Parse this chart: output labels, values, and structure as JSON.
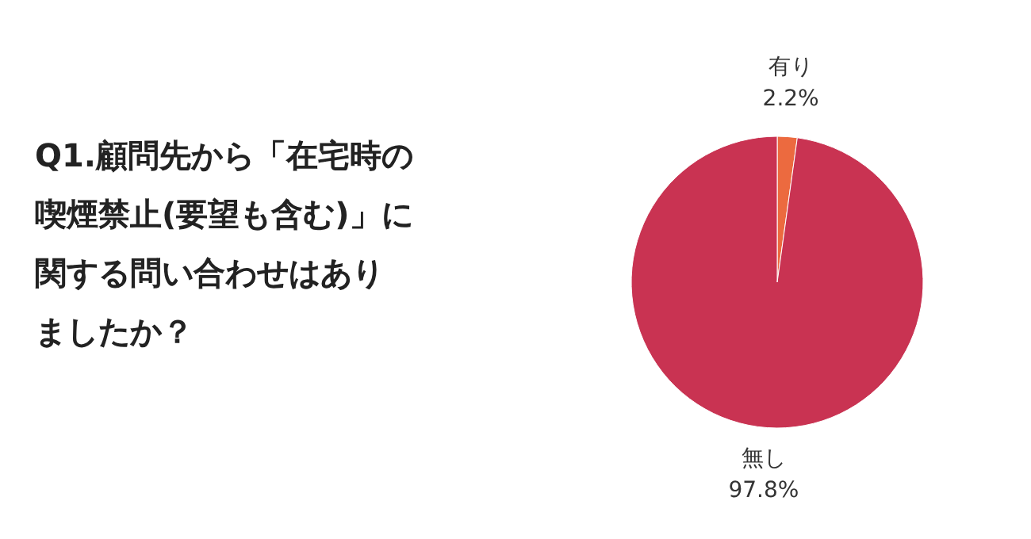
{
  "chart_data": {
    "type": "pie",
    "title": "Q1.顧問先から「在宅時の喫煙禁止(要望も含む)」に関する問い合わせはありましたか？",
    "categories": [
      "有り",
      "無し"
    ],
    "values": [
      2.2,
      97.8
    ],
    "colors": [
      "#ec6a3f",
      "#c93352"
    ],
    "value_labels": [
      "2.2%",
      "97.8%"
    ]
  }
}
